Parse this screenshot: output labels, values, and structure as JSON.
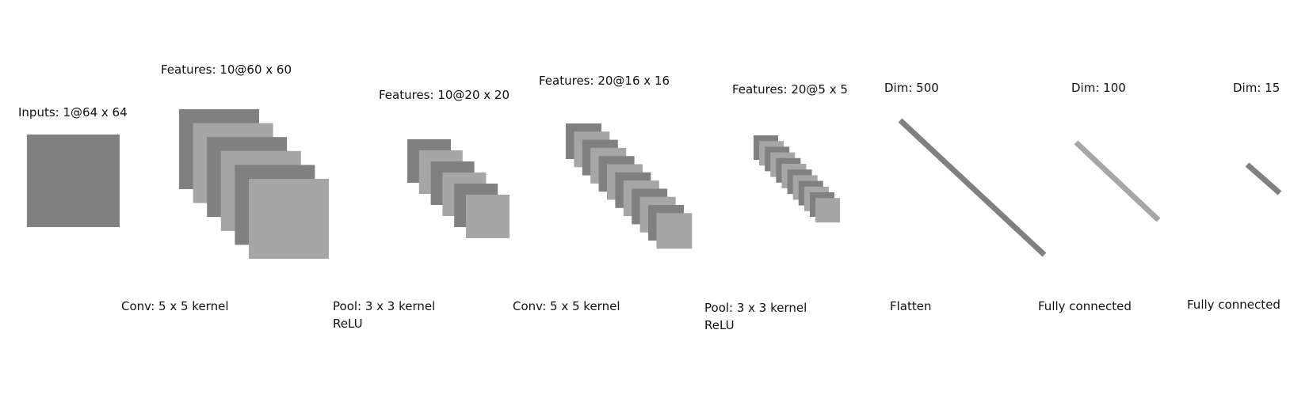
{
  "colors": {
    "dark": "#808080",
    "light": "#a6a6a6",
    "background": "#ffffff",
    "text": "#111111"
  },
  "layers": [
    {
      "id": "input",
      "label": "Inputs: 1@64 x 64",
      "maps": 1
    },
    {
      "id": "conv1",
      "label": "Features: 10@60 x 60",
      "maps": 6
    },
    {
      "id": "pool1",
      "label": "Features: 10@20 x 20",
      "maps": 6
    },
    {
      "id": "conv2",
      "label": "Features: 20@16 x 16",
      "maps": 12
    },
    {
      "id": "pool2",
      "label": "Features: 20@5 x 5",
      "maps": 12
    },
    {
      "id": "fc1",
      "label": "Dim: 500"
    },
    {
      "id": "fc2",
      "label": "Dim: 100"
    },
    {
      "id": "fc3",
      "label": "Dim: 15"
    }
  ],
  "operations": [
    {
      "id": "op1",
      "lines": [
        "Conv: 5 x 5 kernel"
      ]
    },
    {
      "id": "op2",
      "lines": [
        "Pool: 3 x 3 kernel",
        "ReLU"
      ]
    },
    {
      "id": "op3",
      "lines": [
        "Conv: 5 x 5 kernel"
      ]
    },
    {
      "id": "op4",
      "lines": [
        "Pool: 3 x 3 kernel",
        "ReLU"
      ]
    },
    {
      "id": "op5",
      "lines": [
        "Flatten"
      ]
    },
    {
      "id": "op6",
      "lines": [
        "Fully connected"
      ]
    },
    {
      "id": "op7",
      "lines": [
        "Fully connected"
      ]
    }
  ]
}
